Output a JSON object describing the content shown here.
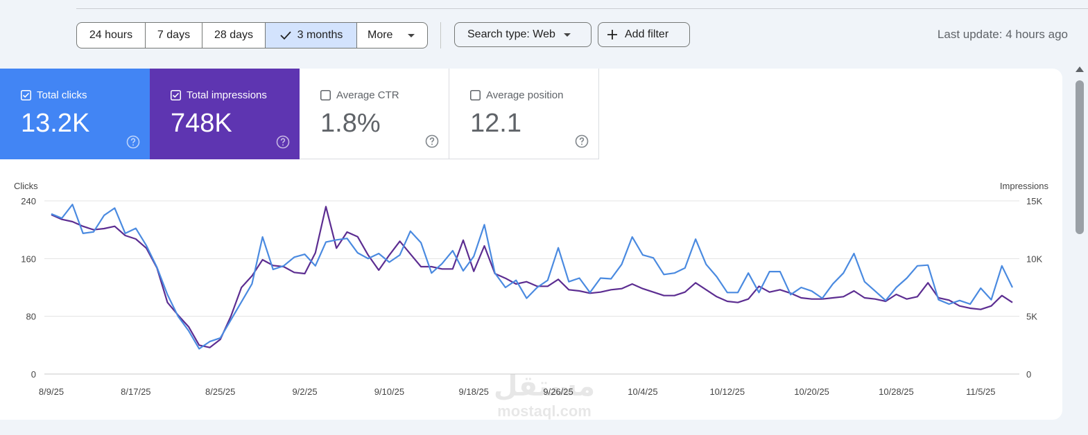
{
  "filters": {
    "ranges": [
      {
        "label": "24 hours",
        "selected": false
      },
      {
        "label": "7 days",
        "selected": false
      },
      {
        "label": "28 days",
        "selected": false
      },
      {
        "label": "3 months",
        "selected": true
      }
    ],
    "more_label": "More",
    "search_type_label": "Search type: Web",
    "add_filter_label": "Add filter",
    "last_update": "Last update: 4 hours ago"
  },
  "metrics": [
    {
      "key": "clicks",
      "label": "Total clicks",
      "value": "13.2K",
      "checked": true,
      "color": "#4285f4"
    },
    {
      "key": "impressions",
      "label": "Total impressions",
      "value": "748K",
      "checked": true,
      "color": "#5e35b1"
    },
    {
      "key": "ctr",
      "label": "Average CTR",
      "value": "1.8%",
      "checked": false
    },
    {
      "key": "position",
      "label": "Average position",
      "value": "12.1",
      "checked": false
    }
  ],
  "icons": {
    "check": "check-icon",
    "dropdown": "dropdown-arrow-icon",
    "plus": "plus-icon",
    "help": "help-circle-icon",
    "checkbox": "checkbox-icon"
  },
  "watermark": {
    "arabic": "مستقل",
    "latin": "mostaql.com"
  },
  "chart_data": {
    "type": "line",
    "left_axis": {
      "label": "Clicks",
      "ticks": [
        "240",
        "160",
        "80",
        "0"
      ],
      "range": [
        0,
        240
      ]
    },
    "right_axis": {
      "label": "Impressions",
      "ticks": [
        "15K",
        "10K",
        "5K",
        "0"
      ],
      "range": [
        0,
        15000
      ]
    },
    "x_tick_labels": [
      "8/9/25",
      "8/17/25",
      "8/25/25",
      "9/2/25",
      "9/10/25",
      "9/18/25",
      "9/26/25",
      "10/4/25",
      "10/12/25",
      "10/20/25",
      "10/28/25",
      "11/5/25"
    ],
    "x_tick_index": [
      0,
      8,
      16,
      24,
      32,
      40,
      48,
      56,
      64,
      72,
      80,
      88
    ],
    "grid": true,
    "series": [
      {
        "name": "Total clicks",
        "axis": "left",
        "color": "#4a8ae0",
        "values": [
          222,
          216,
          235,
          195,
          197,
          220,
          230,
          195,
          202,
          178,
          148,
          110,
          80,
          60,
          35,
          45,
          50,
          75,
          100,
          125,
          190,
          145,
          150,
          162,
          166,
          150,
          183,
          186,
          188,
          168,
          160,
          167,
          155,
          165,
          198,
          182,
          140,
          153,
          171,
          143,
          163,
          207,
          140,
          120,
          130,
          105,
          120,
          130,
          175,
          128,
          133,
          113,
          133,
          132,
          152,
          190,
          165,
          161,
          138,
          140,
          147,
          187,
          152,
          135,
          113,
          113,
          140,
          113,
          142,
          142,
          110,
          120,
          115,
          105,
          125,
          140,
          167,
          128,
          115,
          102,
          120,
          133,
          150,
          151,
          103,
          97,
          102,
          97,
          119,
          103,
          150,
          120
        ]
      },
      {
        "name": "Total impressions",
        "axis": "right",
        "color": "#5c2d91",
        "values": [
          13800,
          13400,
          13200,
          12800,
          12500,
          12600,
          12800,
          12000,
          11700,
          10900,
          9200,
          6200,
          5100,
          4100,
          2500,
          2300,
          3000,
          5000,
          7500,
          8500,
          9900,
          9400,
          9300,
          8800,
          8700,
          10500,
          14500,
          10900,
          12300,
          11900,
          10300,
          9000,
          10300,
          11500,
          10400,
          9300,
          9300,
          9100,
          9100,
          11600,
          8900,
          11100,
          8700,
          8300,
          7800,
          8000,
          7600,
          7600,
          8200,
          7300,
          7200,
          7000,
          7100,
          7300,
          7400,
          7800,
          7400,
          7100,
          6800,
          6800,
          7100,
          7900,
          7300,
          6700,
          6300,
          6200,
          6500,
          7600,
          7100,
          7300,
          7000,
          6600,
          6500,
          6500,
          6600,
          6700,
          7200,
          6600,
          6500,
          6300,
          6900,
          6500,
          6700,
          7900,
          6600,
          6400,
          5900,
          5700,
          5600,
          5900,
          6800,
          6200
        ]
      }
    ]
  }
}
